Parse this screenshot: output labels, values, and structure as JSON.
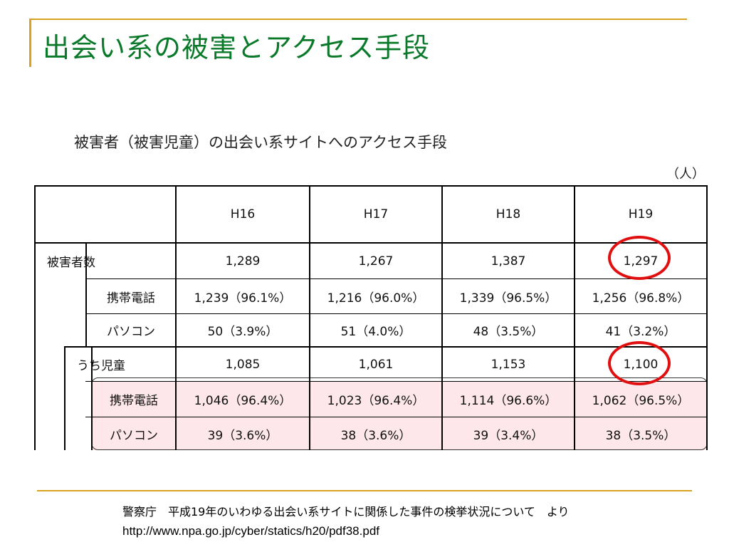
{
  "slide": {
    "title": "出会い系の被害とアクセス手段"
  },
  "table": {
    "title": "被害者（被害児童）の出会い系サイトへのアクセス手段",
    "unit": "（人）",
    "columns": [
      "H16",
      "H17",
      "H18",
      "H19"
    ],
    "rows": [
      {
        "label": "被害者数",
        "values": [
          "1,289",
          "1,267",
          "1,387",
          "1,297"
        ]
      },
      {
        "label": "携帯電話",
        "values": [
          "1,239（96.1%）",
          "1,216（96.0%）",
          "1,339（96.5%）",
          "1,256（96.8%）"
        ]
      },
      {
        "label": "パソコン",
        "values": [
          "50（3.9%）",
          "51（4.0%）",
          "48（3.5%）",
          "41（3.2%）"
        ]
      },
      {
        "label": "うち児童",
        "values": [
          "1,085",
          "1,061",
          "1,153",
          "1,100"
        ]
      },
      {
        "label": "携帯電話",
        "values": [
          "1,046（96.4%）",
          "1,023（96.4%）",
          "1,114（96.6%）",
          "1,062（96.5%）"
        ]
      },
      {
        "label": "パソコン",
        "values": [
          "39（3.6%）",
          "38（3.6%）",
          "39（3.4%）",
          "38（3.5%）"
        ]
      }
    ],
    "highlight_color": "#fde7ea",
    "circle_color": "#e01010"
  },
  "footer": {
    "source": "警察庁　平成19年のいわゆる出会い系サイトに関係した事件の検挙状況について　より",
    "url": "http://www.npa.go.jp/cyber/statics/h20/pdf38.pdf"
  }
}
